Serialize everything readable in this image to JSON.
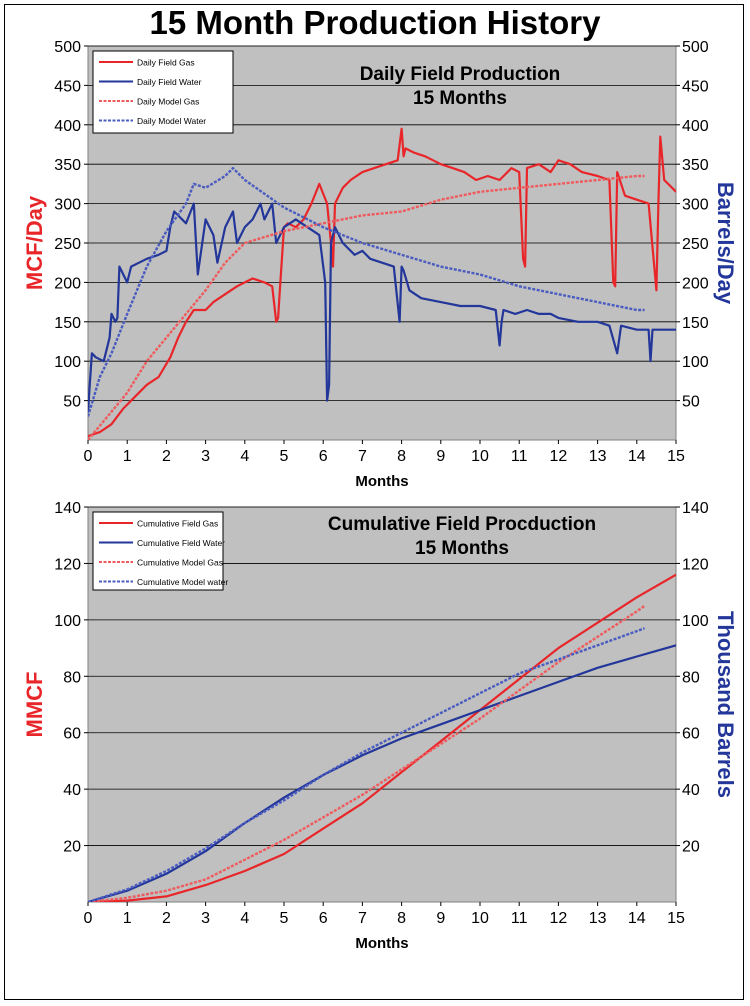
{
  "page": {
    "title": "15 Month Production History"
  },
  "colors": {
    "plot_bg": "#c0c0c0",
    "gas": "#e8262a",
    "water": "#23369a",
    "model_gas": "#f05a5c",
    "model_water": "#4a5cc0",
    "left_axis_title": "#e8262a",
    "right_axis_title": "#23369a"
  },
  "chart_data": [
    {
      "type": "line",
      "title": "Daily Field Production",
      "subtitle": "15 Months",
      "xlabel": "Months",
      "ylabel": "MCF/Day",
      "y2label": "Barrels/Day",
      "xlim": [
        0,
        15
      ],
      "ylim": [
        0,
        500
      ],
      "y2lim": [
        0,
        500
      ],
      "xticks": [
        0,
        1,
        2,
        3,
        4,
        5,
        6,
        7,
        8,
        9,
        10,
        11,
        12,
        13,
        14,
        15
      ],
      "yticks": [
        50,
        100,
        150,
        200,
        250,
        300,
        350,
        400,
        450,
        500
      ],
      "y2ticks": [
        50,
        100,
        150,
        200,
        250,
        300,
        350,
        400,
        450,
        500
      ],
      "grid": "horizontal",
      "legend_position": "top-left",
      "series": [
        {
          "name": "Daily Field Gas",
          "axis": "left",
          "color_key": "gas",
          "style": "solid",
          "x": [
            0,
            0.3,
            0.6,
            0.9,
            1.2,
            1.5,
            1.8,
            2.1,
            2.3,
            2.5,
            2.7,
            3.0,
            3.2,
            3.5,
            3.8,
            4.0,
            4.2,
            4.5,
            4.7,
            4.8,
            4.85,
            4.9,
            5.0,
            5.1,
            5.3,
            5.5,
            5.7,
            5.9,
            6.1,
            6.2,
            6.25,
            6.3,
            6.5,
            6.7,
            7.0,
            7.3,
            7.6,
            7.9,
            8.0,
            8.05,
            8.1,
            8.3,
            8.6,
            9.0,
            9.3,
            9.6,
            9.9,
            10.2,
            10.5,
            10.8,
            11.0,
            11.1,
            11.15,
            11.2,
            11.5,
            11.8,
            12.0,
            12.3,
            12.6,
            13.0,
            13.3,
            13.4,
            13.45,
            13.5,
            13.7,
            14.0,
            14.3,
            14.5,
            14.55,
            14.6,
            14.7,
            14.9,
            15.0
          ],
          "y": [
            5,
            10,
            20,
            40,
            55,
            70,
            80,
            105,
            130,
            150,
            165,
            165,
            175,
            185,
            195,
            200,
            205,
            200,
            195,
            150,
            155,
            195,
            270,
            275,
            270,
            280,
            300,
            325,
            300,
            250,
            220,
            300,
            320,
            330,
            340,
            345,
            350,
            355,
            395,
            360,
            370,
            365,
            360,
            350,
            345,
            340,
            330,
            335,
            330,
            345,
            340,
            230,
            220,
            345,
            350,
            340,
            355,
            350,
            340,
            335,
            330,
            200,
            195,
            340,
            310,
            305,
            300,
            190,
            300,
            385,
            330,
            320,
            315
          ]
        },
        {
          "name": "Daily Field Water",
          "axis": "right",
          "color_key": "water",
          "style": "solid",
          "x": [
            0,
            0.05,
            0.1,
            0.2,
            0.4,
            0.55,
            0.6,
            0.7,
            0.75,
            0.8,
            0.9,
            1.0,
            1.1,
            1.3,
            1.5,
            1.8,
            2.0,
            2.1,
            2.2,
            2.5,
            2.7,
            2.8,
            3.0,
            3.2,
            3.3,
            3.5,
            3.7,
            3.8,
            4.0,
            4.2,
            4.4,
            4.5,
            4.7,
            4.8,
            5.0,
            5.3,
            5.6,
            5.9,
            6.05,
            6.1,
            6.15,
            6.2,
            6.3,
            6.5,
            6.8,
            7.0,
            7.2,
            7.5,
            7.8,
            7.95,
            8.0,
            8.05,
            8.2,
            8.5,
            9.0,
            9.5,
            10.0,
            10.4,
            10.5,
            10.55,
            10.6,
            10.9,
            11.2,
            11.5,
            11.8,
            12.0,
            12.5,
            13.0,
            13.3,
            13.5,
            13.6,
            14.0,
            14.3,
            14.35,
            14.4,
            14.6,
            15.0
          ],
          "y": [
            35,
            75,
            110,
            105,
            100,
            130,
            160,
            150,
            155,
            220,
            210,
            200,
            220,
            225,
            230,
            235,
            240,
            270,
            290,
            275,
            300,
            210,
            280,
            260,
            225,
            270,
            290,
            250,
            270,
            280,
            300,
            280,
            300,
            250,
            270,
            280,
            270,
            260,
            200,
            50,
            70,
            250,
            270,
            250,
            235,
            240,
            230,
            225,
            220,
            150,
            220,
            215,
            190,
            180,
            175,
            170,
            170,
            165,
            120,
            150,
            165,
            160,
            165,
            160,
            160,
            155,
            150,
            150,
            145,
            110,
            145,
            140,
            140,
            100,
            140,
            140,
            140
          ]
        },
        {
          "name": "Daily Model Gas",
          "axis": "left",
          "color_key": "model_gas",
          "style": "dotted",
          "x": [
            0,
            0.5,
            1.0,
            1.5,
            2.0,
            2.5,
            3.0,
            3.5,
            4.0,
            5.0,
            6.0,
            7.0,
            8.0,
            9.0,
            10.0,
            11.0,
            12.0,
            13.0,
            14.0,
            14.2
          ],
          "y": [
            0,
            30,
            60,
            100,
            130,
            160,
            190,
            225,
            250,
            265,
            275,
            285,
            290,
            305,
            315,
            320,
            325,
            330,
            335,
            335
          ]
        },
        {
          "name": "Daily Model Water",
          "axis": "right",
          "color_key": "model_water",
          "style": "dotted",
          "x": [
            0,
            0.3,
            0.6,
            1.0,
            1.5,
            2.0,
            2.5,
            2.7,
            3.0,
            3.5,
            3.7,
            4.0,
            5.0,
            6.0,
            7.0,
            8.0,
            9.0,
            10.0,
            11.0,
            12.0,
            13.0,
            14.0,
            14.2
          ],
          "y": [
            30,
            80,
            110,
            160,
            220,
            265,
            300,
            325,
            320,
            335,
            345,
            330,
            295,
            270,
            250,
            235,
            220,
            210,
            195,
            185,
            175,
            165,
            165
          ]
        }
      ]
    },
    {
      "type": "line",
      "title": "Cumulative Field Procduction",
      "subtitle": "15 Months",
      "xlabel": "Months",
      "ylabel": "MMCF",
      "y2label": "Thousand Barrels",
      "xlim": [
        0,
        15
      ],
      "ylim": [
        0,
        140
      ],
      "y2lim": [
        0,
        140
      ],
      "xticks": [
        0,
        1,
        2,
        3,
        4,
        5,
        6,
        7,
        8,
        9,
        10,
        11,
        12,
        13,
        14,
        15
      ],
      "yticks": [
        20,
        40,
        60,
        80,
        100,
        120,
        140
      ],
      "y2ticks": [
        20,
        40,
        60,
        80,
        100,
        120,
        140
      ],
      "grid": "horizontal",
      "legend_position": "top-left",
      "series": [
        {
          "name": "Cumulative Field Gas",
          "axis": "left",
          "color_key": "gas",
          "style": "solid",
          "x": [
            0,
            1,
            2,
            3,
            4,
            5,
            6,
            7,
            8,
            9,
            10,
            11,
            12,
            13,
            14,
            15
          ],
          "y": [
            0,
            0.5,
            2,
            6,
            11,
            17,
            26,
            35,
            46,
            57,
            68,
            79,
            90,
            99,
            108,
            116
          ]
        },
        {
          "name": "Cumulative Field Water",
          "axis": "right",
          "color_key": "water",
          "style": "solid",
          "x": [
            0,
            1,
            2,
            3,
            4,
            5,
            6,
            7,
            8,
            9,
            10,
            11,
            12,
            13,
            14,
            15
          ],
          "y": [
            0,
            4,
            10,
            18,
            28,
            37,
            45,
            52,
            58,
            63,
            68,
            73,
            78,
            83,
            87,
            91
          ]
        },
        {
          "name": "Cumulative Model Gas",
          "axis": "left",
          "color_key": "model_gas",
          "style": "dotted",
          "x": [
            0,
            1,
            2,
            3,
            4,
            5,
            6,
            7,
            8,
            9,
            10,
            11,
            12,
            13,
            14,
            14.2
          ],
          "y": [
            0,
            1.5,
            4,
            8,
            15,
            22,
            30,
            38,
            47,
            56,
            65,
            75,
            85,
            94,
            103,
            105
          ]
        },
        {
          "name": "Cumulative Model water",
          "axis": "right",
          "color_key": "model_water",
          "style": "dotted",
          "x": [
            0,
            1,
            2,
            3,
            4,
            5,
            6,
            7,
            8,
            9,
            10,
            11,
            12,
            13,
            14,
            14.2
          ],
          "y": [
            0,
            4.5,
            11,
            19,
            28,
            36,
            45,
            53,
            60,
            67,
            74,
            81,
            86,
            91,
            96,
            97
          ]
        }
      ]
    }
  ]
}
